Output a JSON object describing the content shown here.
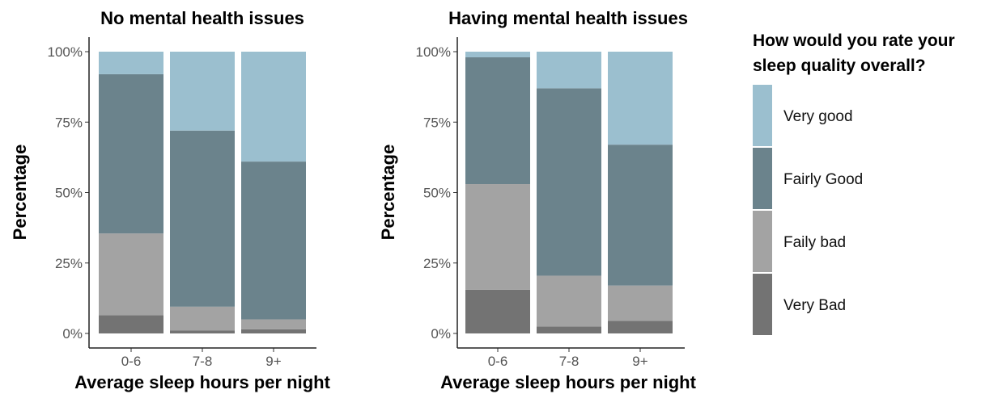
{
  "chart_data": {
    "type": "bar",
    "stacked": true,
    "legend": {
      "title_lines": [
        "How would you rate your",
        "sleep quality overall?"
      ],
      "placement": "right",
      "entries": [
        {
          "label": "Very good",
          "color": "#9bbfcf"
        },
        {
          "label": "Fairly Good",
          "color": "#6b838c"
        },
        {
          "label": "Faily bad",
          "color": "#a3a3a3"
        },
        {
          "label": "Very Bad",
          "color": "#737373"
        }
      ]
    },
    "panels": [
      {
        "title": "No mental health issues",
        "xlabel": "Average sleep hours per night",
        "ylabel": "Percentage",
        "categories": [
          "0-6",
          "7-8",
          "9+"
        ],
        "yticks": [
          "0%",
          "25%",
          "50%",
          "75%",
          "100%"
        ],
        "ylim": [
          0,
          100
        ],
        "series": [
          {
            "name": "Very Bad",
            "values": [
              6.5,
              1,
              1.5
            ]
          },
          {
            "name": "Faily bad",
            "values": [
              29,
              8.5,
              3.5
            ]
          },
          {
            "name": "Fairly Good",
            "values": [
              56.5,
              62.5,
              56
            ]
          },
          {
            "name": "Very good",
            "values": [
              8,
              28,
              39
            ]
          }
        ]
      },
      {
        "title": "Having mental health issues",
        "xlabel": "Average sleep hours per night",
        "ylabel": "Percentage",
        "categories": [
          "0-6",
          "7-8",
          "9+"
        ],
        "yticks": [
          "0%",
          "25%",
          "50%",
          "75%",
          "100%"
        ],
        "ylim": [
          0,
          100
        ],
        "series": [
          {
            "name": "Very Bad",
            "values": [
              15.5,
              2.5,
              4.5
            ]
          },
          {
            "name": "Faily bad",
            "values": [
              37.5,
              18,
              12.5
            ]
          },
          {
            "name": "Fairly Good",
            "values": [
              45,
              66.5,
              50
            ]
          },
          {
            "name": "Very good",
            "values": [
              2,
              13,
              33
            ]
          }
        ]
      }
    ]
  }
}
